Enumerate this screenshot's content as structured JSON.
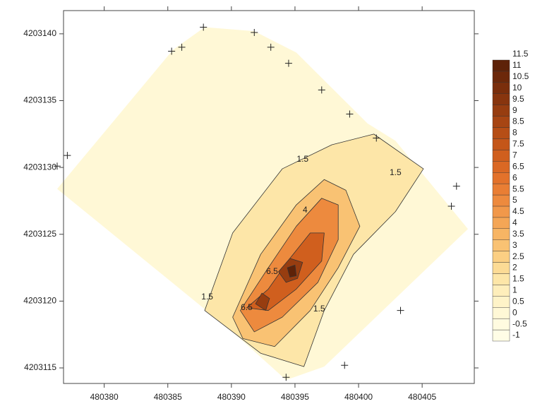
{
  "chart_data": {
    "type": "contour",
    "xlim": [
      480376.8,
      480409.1
    ],
    "ylim": [
      4203113.84,
      4203141.74
    ],
    "xticks": [
      480380,
      480385,
      480390,
      480395,
      480400,
      480405
    ],
    "yticks": [
      4203115,
      4203120,
      4203125,
      4203130,
      4203135,
      4203140
    ],
    "colorbar": {
      "levels": [
        -1,
        -0.5,
        0,
        0.5,
        1,
        1.5,
        2,
        2.5,
        3,
        3.5,
        4,
        4.5,
        5,
        5.5,
        6,
        6.5,
        7,
        7.5,
        8,
        8.5,
        9,
        9.5,
        10,
        10.5,
        11,
        11.5
      ],
      "colors": [
        "#fffde6",
        "#fffbe0",
        "#fff8d6",
        "#fef3c8",
        "#feeebb",
        "#fde6a8",
        "#fcdb95",
        "#fbcf83",
        "#f9c273",
        "#f7b564",
        "#f4a656",
        "#f1984a",
        "#ed8a3e",
        "#e97e34",
        "#e3722b",
        "#da6824",
        "#d05f1e",
        "#c45619",
        "#b64e16",
        "#a74513",
        "#973d10",
        "#88350e",
        "#7a2e0c",
        "#6c280a",
        "#5e2208"
      ]
    },
    "regions": [
      {
        "level": 0,
        "points": [
          [
            480376.3,
            4203128.4
          ],
          [
            480385.4,
            4203138.8
          ],
          [
            480387.9,
            4203140.5
          ],
          [
            480391.8,
            4203140.2
          ],
          [
            480395.1,
            4203138.6
          ],
          [
            480400.7,
            4203133.3
          ],
          [
            480402.9,
            4203132.0
          ],
          [
            480408.6,
            4203125.4
          ],
          [
            480397.3,
            4203115.1
          ],
          [
            480394.3,
            4203114.1
          ],
          [
            480390.1,
            4203117.7
          ]
        ]
      },
      {
        "level": 1.5,
        "points": [
          [
            480387.9,
            4203119.3
          ],
          [
            480390.1,
            4203125.1
          ],
          [
            480394.0,
            4203129.9
          ],
          [
            480397.9,
            4203131.7
          ],
          [
            480401.2,
            4203132.5
          ],
          [
            480405.1,
            4203129.9
          ],
          [
            480402.9,
            4203126.7
          ],
          [
            480399.6,
            4203123.5
          ],
          [
            480397.3,
            4203119.3
          ],
          [
            480395.7,
            4203115.1
          ],
          [
            480392.3,
            4203116.1
          ]
        ]
      },
      {
        "level": 3,
        "points": [
          [
            480390.1,
            4203118.8
          ],
          [
            480392.3,
            4203123.5
          ],
          [
            480395.1,
            4203127.2
          ],
          [
            480397.3,
            4203129.1
          ],
          [
            480399.0,
            4203128.3
          ],
          [
            480400.1,
            4203125.6
          ],
          [
            480398.4,
            4203122.5
          ],
          [
            480396.2,
            4203119.3
          ],
          [
            480393.4,
            4203116.6
          ],
          [
            480390.9,
            4203117.2
          ]
        ]
      },
      {
        "level": 5,
        "points": [
          [
            480390.7,
            4203119.3
          ],
          [
            480392.9,
            4203122.5
          ],
          [
            480395.1,
            4203125.6
          ],
          [
            480397.1,
            4203127.7
          ],
          [
            480398.4,
            4203127.2
          ],
          [
            480398.4,
            4203124.6
          ],
          [
            480396.8,
            4203121.4
          ],
          [
            480394.0,
            4203118.8
          ],
          [
            480391.8,
            4203117.7
          ]
        ]
      },
      {
        "level": 7,
        "points": [
          [
            480391.2,
            4203119.5
          ],
          [
            480392.9,
            4203120.9
          ],
          [
            480394.6,
            4203123.2
          ],
          [
            480396.2,
            4203125.1
          ],
          [
            480397.3,
            4203125.1
          ],
          [
            480397.1,
            4203123.0
          ],
          [
            480395.1,
            4203120.9
          ],
          [
            480392.9,
            4203119.3
          ]
        ]
      },
      {
        "level": 9,
        "points": [
          [
            480393.7,
            4203122.2
          ],
          [
            480394.6,
            4203123.2
          ],
          [
            480395.6,
            4203122.9
          ],
          [
            480395.2,
            4203121.7
          ],
          [
            480394.3,
            4203121.4
          ]
        ]
      },
      {
        "level": 9,
        "points": [
          [
            480391.9,
            4203119.8
          ],
          [
            480392.4,
            4203120.6
          ],
          [
            480393.0,
            4203120.2
          ],
          [
            480392.7,
            4203119.3
          ]
        ]
      },
      {
        "level": 11,
        "points": [
          [
            480394.4,
            4203122.5
          ],
          [
            480395.0,
            4203122.7
          ],
          [
            480395.1,
            4203121.9
          ],
          [
            480394.6,
            4203121.8
          ]
        ]
      }
    ],
    "contour_labels": [
      {
        "text": "1.5",
        "x": 480395.6,
        "y": 4203130.6
      },
      {
        "text": "1.5",
        "x": 480402.9,
        "y": 4203129.6
      },
      {
        "text": "1.5",
        "x": 480388.1,
        "y": 4203120.3
      },
      {
        "text": "1.5",
        "x": 480396.9,
        "y": 4203119.4
      },
      {
        "text": "4",
        "x": 480395.8,
        "y": 4203126.8
      },
      {
        "text": "6.5",
        "x": 480393.2,
        "y": 4203122.2
      },
      {
        "text": "6.5",
        "x": 480391.2,
        "y": 4203119.5
      }
    ],
    "points": [
      [
        480385.3,
        4203138.7
      ],
      [
        480386.1,
        4203139.0
      ],
      [
        480387.8,
        4203140.5
      ],
      [
        480391.8,
        4203140.1
      ],
      [
        480393.1,
        4203139.0
      ],
      [
        480394.5,
        4203137.8
      ],
      [
        480397.1,
        4203135.8
      ],
      [
        480399.3,
        4203134.0
      ],
      [
        480401.4,
        4203132.2
      ],
      [
        480407.7,
        4203128.6
      ],
      [
        480407.3,
        4203127.1
      ],
      [
        480403.3,
        4203119.3
      ],
      [
        480398.9,
        4203115.2
      ],
      [
        480394.3,
        4203114.3
      ],
      [
        480377.1,
        4203130.9
      ],
      [
        480376.3,
        4203130.1
      ]
    ]
  }
}
